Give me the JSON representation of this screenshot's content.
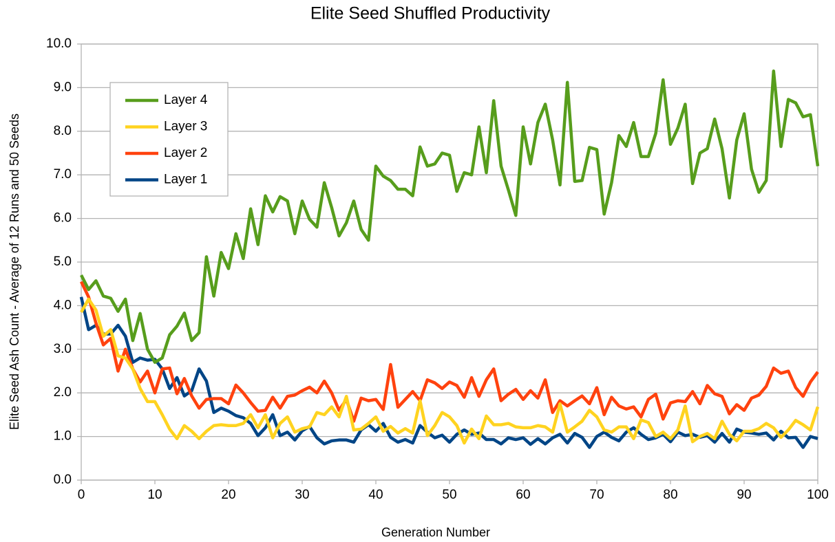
{
  "chart_data": {
    "type": "line",
    "title": "Elite Seed Shuffled Productivity",
    "x_label": "Generation Number",
    "y_label": "Elite Seed Ash Count  -  Average of 12 Runs and 50 Seeds",
    "x": [
      0,
      1,
      2,
      3,
      4,
      5,
      6,
      7,
      8,
      9,
      10,
      11,
      12,
      13,
      14,
      15,
      16,
      17,
      18,
      19,
      20,
      21,
      22,
      23,
      24,
      25,
      26,
      27,
      28,
      29,
      30,
      31,
      32,
      33,
      34,
      35,
      36,
      37,
      38,
      39,
      40,
      41,
      42,
      43,
      44,
      45,
      46,
      47,
      48,
      49,
      50,
      51,
      52,
      53,
      54,
      55,
      56,
      57,
      58,
      59,
      60,
      61,
      62,
      63,
      64,
      65,
      66,
      67,
      68,
      69,
      70,
      71,
      72,
      73,
      74,
      75,
      76,
      77,
      78,
      79,
      80,
      81,
      82,
      83,
      84,
      85,
      86,
      87,
      88,
      89,
      90,
      91,
      92,
      93,
      94,
      95,
      96,
      97,
      98,
      99,
      100
    ],
    "series": [
      {
        "name": "Layer 4",
        "color": "#579d1c",
        "values": [
          4.7,
          4.37,
          4.57,
          4.22,
          4.17,
          3.87,
          4.15,
          3.2,
          3.82,
          3.0,
          2.7,
          2.8,
          3.33,
          3.53,
          3.83,
          3.2,
          3.38,
          5.12,
          4.22,
          5.22,
          4.85,
          5.65,
          5.08,
          6.22,
          5.4,
          6.52,
          6.15,
          6.5,
          6.4,
          5.65,
          6.4,
          5.98,
          5.8,
          6.82,
          6.25,
          5.6,
          5.9,
          6.4,
          5.75,
          5.5,
          7.2,
          6.97,
          6.87,
          6.67,
          6.67,
          6.52,
          7.64,
          7.2,
          7.25,
          7.5,
          7.45,
          6.62,
          7.05,
          7.0,
          8.1,
          7.05,
          8.7,
          7.2,
          6.65,
          6.07,
          8.1,
          7.25,
          8.2,
          8.62,
          7.8,
          6.77,
          9.12,
          6.85,
          6.87,
          7.63,
          7.58,
          6.1,
          6.82,
          7.9,
          7.65,
          8.2,
          7.42,
          7.42,
          7.95,
          9.18,
          7.7,
          8.07,
          8.62,
          6.8,
          7.5,
          7.6,
          8.28,
          7.6,
          6.47,
          7.8,
          8.4,
          7.13,
          6.6,
          6.87,
          9.38,
          7.65,
          8.73,
          8.65,
          8.33,
          8.38,
          7.2
        ]
      },
      {
        "name": "Layer 3",
        "color": "#ffd320",
        "values": [
          3.85,
          4.15,
          3.9,
          3.3,
          3.45,
          2.85,
          2.8,
          2.55,
          2.1,
          1.8,
          1.8,
          1.5,
          1.17,
          0.95,
          1.25,
          1.12,
          0.95,
          1.12,
          1.25,
          1.27,
          1.25,
          1.25,
          1.3,
          1.5,
          1.2,
          1.5,
          0.97,
          1.3,
          1.45,
          1.1,
          1.18,
          1.22,
          1.55,
          1.5,
          1.68,
          1.45,
          1.92,
          1.15,
          1.17,
          1.3,
          1.45,
          1.12,
          1.23,
          1.08,
          1.18,
          1.08,
          1.82,
          1.02,
          1.25,
          1.55,
          1.45,
          1.25,
          0.85,
          1.17,
          0.95,
          1.47,
          1.27,
          1.27,
          1.3,
          1.22,
          1.2,
          1.2,
          1.25,
          1.22,
          1.1,
          1.75,
          1.1,
          1.22,
          1.35,
          1.6,
          1.45,
          1.15,
          1.1,
          1.22,
          1.22,
          0.95,
          1.38,
          1.32,
          1.0,
          1.1,
          0.95,
          1.15,
          1.7,
          0.88,
          1.0,
          1.07,
          0.95,
          1.35,
          1.05,
          0.9,
          1.12,
          1.12,
          1.18,
          1.3,
          1.2,
          0.98,
          1.15,
          1.37,
          1.27,
          1.15,
          1.68
        ]
      },
      {
        "name": "Layer 2",
        "color": "#ff420e",
        "values": [
          4.55,
          4.2,
          3.6,
          3.1,
          3.25,
          2.5,
          3.0,
          2.55,
          2.25,
          2.5,
          2.0,
          2.55,
          2.57,
          1.98,
          2.33,
          1.93,
          1.65,
          1.85,
          1.87,
          1.87,
          1.75,
          2.18,
          2.0,
          1.78,
          1.58,
          1.6,
          1.9,
          1.65,
          1.92,
          1.95,
          2.05,
          2.13,
          2.0,
          2.27,
          2.0,
          1.6,
          1.85,
          1.35,
          1.88,
          1.82,
          1.85,
          1.62,
          2.65,
          1.67,
          1.85,
          2.03,
          1.82,
          2.3,
          2.23,
          2.1,
          2.25,
          2.17,
          1.9,
          2.35,
          1.92,
          2.3,
          2.55,
          1.82,
          1.97,
          2.08,
          1.85,
          2.05,
          1.88,
          2.3,
          1.55,
          1.82,
          1.7,
          1.82,
          1.93,
          1.75,
          2.12,
          1.5,
          1.9,
          1.7,
          1.63,
          1.68,
          1.45,
          1.85,
          1.97,
          1.4,
          1.77,
          1.82,
          1.8,
          2.03,
          1.75,
          2.17,
          1.98,
          1.92,
          1.52,
          1.73,
          1.6,
          1.88,
          1.95,
          2.15,
          2.57,
          2.45,
          2.5,
          2.12,
          1.92,
          2.25,
          2.48
        ]
      },
      {
        "name": "Layer 1",
        "color": "#004586",
        "values": [
          4.2,
          3.45,
          3.55,
          3.35,
          3.35,
          3.55,
          3.3,
          2.7,
          2.8,
          2.75,
          2.77,
          2.55,
          2.1,
          2.35,
          1.93,
          2.05,
          2.55,
          2.27,
          1.55,
          1.65,
          1.58,
          1.48,
          1.43,
          1.3,
          1.02,
          1.2,
          1.5,
          1.02,
          1.1,
          0.92,
          1.13,
          1.23,
          0.97,
          0.83,
          0.9,
          0.92,
          0.92,
          0.87,
          1.15,
          1.27,
          1.12,
          1.3,
          0.98,
          0.87,
          0.93,
          0.85,
          1.25,
          1.1,
          0.97,
          1.03,
          0.87,
          1.05,
          1.15,
          1.05,
          1.08,
          0.93,
          0.93,
          0.83,
          0.97,
          0.93,
          0.97,
          0.82,
          0.95,
          0.83,
          0.97,
          1.05,
          0.85,
          1.07,
          0.98,
          0.75,
          1.0,
          1.1,
          0.98,
          0.9,
          1.1,
          1.2,
          1.05,
          0.93,
          0.97,
          1.05,
          0.88,
          1.1,
          1.02,
          1.05,
          0.98,
          1.02,
          0.87,
          1.07,
          0.87,
          1.17,
          1.1,
          1.08,
          1.05,
          1.08,
          0.92,
          1.12,
          0.97,
          0.98,
          0.75,
          1.0,
          0.95
        ]
      }
    ],
    "xlim": [
      0,
      100
    ],
    "xticks": [
      0,
      10,
      20,
      30,
      40,
      50,
      60,
      70,
      80,
      90,
      100
    ],
    "ylim": [
      0,
      10
    ],
    "yticks": [
      {
        "value": 0,
        "label": "0.0"
      },
      {
        "value": 1,
        "label": "1.0"
      },
      {
        "value": 2,
        "label": "2.0"
      },
      {
        "value": 3,
        "label": "3.0"
      },
      {
        "value": 4,
        "label": "4.0"
      },
      {
        "value": 5,
        "label": "5.0"
      },
      {
        "value": 6,
        "label": "6.0"
      },
      {
        "value": 7,
        "label": "7.0"
      },
      {
        "value": 8,
        "label": "8.0"
      },
      {
        "value": 9,
        "label": "9.0"
      },
      {
        "value": 10,
        "label": "10.0"
      }
    ],
    "grid": true,
    "legend": "top-left"
  }
}
